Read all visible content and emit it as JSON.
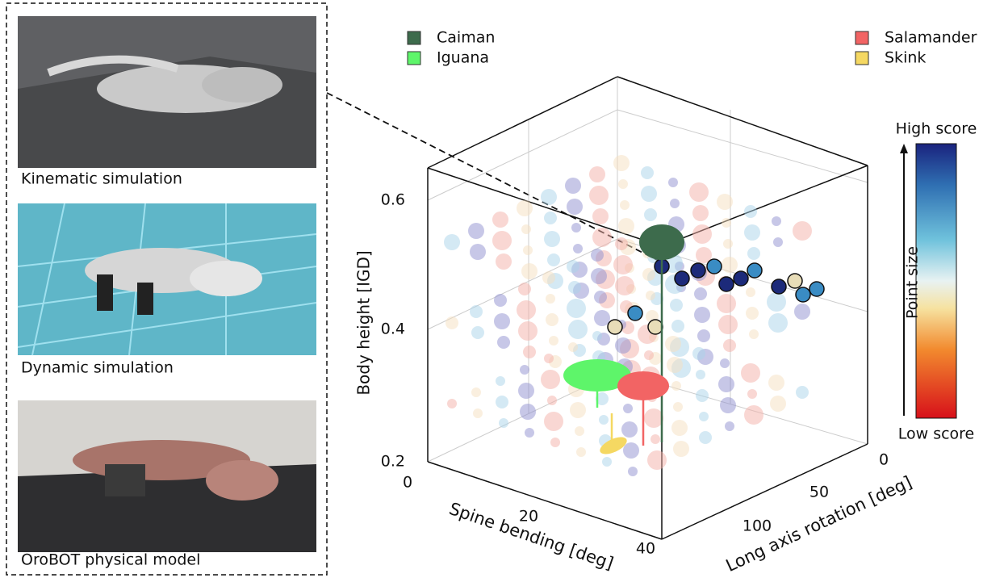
{
  "panels": [
    {
      "caption": "Kinematic simulation"
    },
    {
      "caption": "Dynamic simulation"
    },
    {
      "caption": "OroBOT physical model"
    }
  ],
  "legend": [
    {
      "name": "Caiman",
      "color": "#3d6b4c"
    },
    {
      "name": "Iguana",
      "color": "#5ef56a"
    },
    {
      "name": "Salamander",
      "color": "#f26464"
    },
    {
      "name": "Skink",
      "color": "#f5d862"
    }
  ],
  "axes": {
    "z_label": "Body height [IGD]",
    "z_ticks": [
      "0.2",
      "0.4",
      "0.6"
    ],
    "x_label": "Spine bending [deg]",
    "x_ticks": [
      "0",
      "20",
      "40"
    ],
    "y_label": "Long axis rotation [deg]",
    "y_ticks": [
      "0",
      "50",
      "100"
    ]
  },
  "colorbar": {
    "top": "High score",
    "bottom": "Low score",
    "label": "Point size"
  }
}
